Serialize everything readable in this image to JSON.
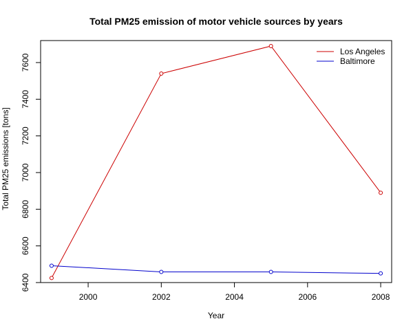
{
  "chart_data": {
    "type": "line",
    "title": "Total PM25 emission of motor vehicle sources by years",
    "xlabel": "Year",
    "ylabel": "Total PM25 emissions [tons]",
    "x": [
      1999,
      2002,
      2005,
      2008
    ],
    "xticks": [
      "2000",
      "2002",
      "2004",
      "2006",
      "2008"
    ],
    "yticks": [
      "6400",
      "6600",
      "6800",
      "7000",
      "7200",
      "7400",
      "7600"
    ],
    "xlim": [
      1998.7,
      2008.3
    ],
    "ylim": [
      6400,
      7720
    ],
    "grid": false,
    "legend_position": "top-right",
    "series": [
      {
        "name": "Los Angeles",
        "color": "#cc0000",
        "values": [
          6425,
          7540,
          7690,
          6890
        ]
      },
      {
        "name": "Baltimore",
        "color": "#0000cc",
        "values": [
          6492,
          6458,
          6458,
          6450
        ]
      }
    ]
  }
}
